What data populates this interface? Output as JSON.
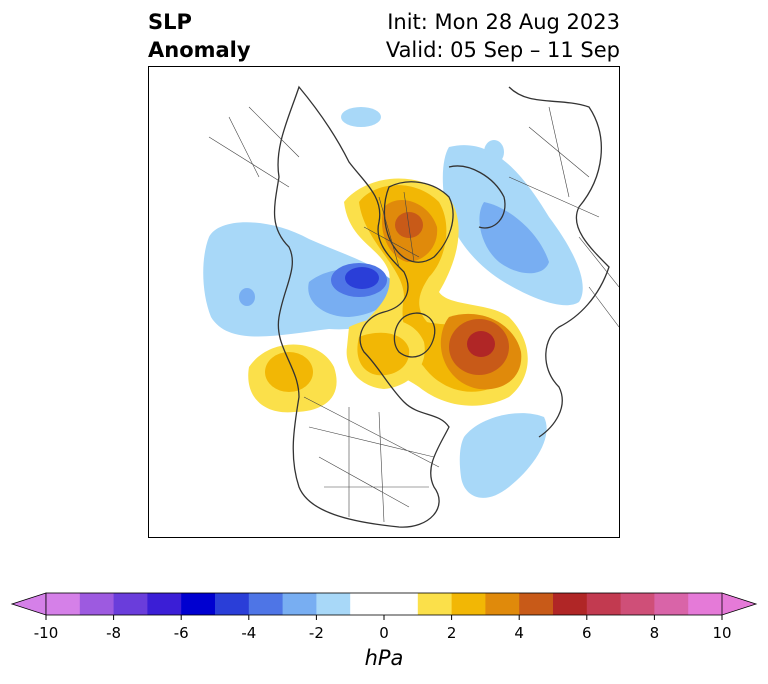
{
  "title": {
    "left": "SLP\nAnomaly",
    "right_line1": "Init: Mon 28 Aug 2023",
    "right_line2": "Valid: 05 Sep – 11 Sep"
  },
  "colorbar": {
    "unit": "hPa",
    "ticks": [
      "-10",
      "-8",
      "-6",
      "-4",
      "-2",
      "0",
      "2",
      "4",
      "6",
      "8",
      "10"
    ],
    "colors": [
      "#d580e8",
      "#9d5ae0",
      "#6a3ddb",
      "#3b1ed6",
      "#0000d0",
      "#2a3ed8",
      "#4e75e6",
      "#78aef2",
      "#a8d8f8",
      "#ffffff",
      "#ffffff",
      "#fbe04a",
      "#f2b705",
      "#e08a0b",
      "#c85a18",
      "#b02626",
      "#c23a50",
      "#cf4f78",
      "#d964a8",
      "#e57ad8"
    ]
  }
}
